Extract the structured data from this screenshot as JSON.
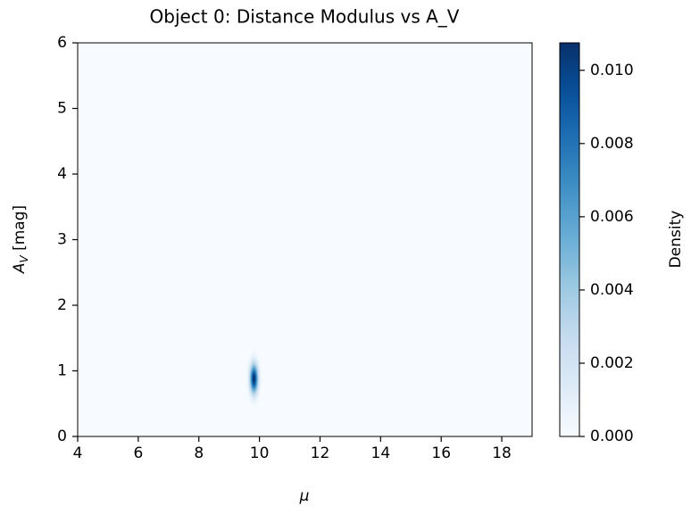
{
  "chart_data": {
    "type": "density",
    "title": "Object 0: Distance Modulus vs A_V",
    "xlabel": "μ",
    "ylabel": "A_V [mag]",
    "xlim": [
      4,
      19
    ],
    "xticks": [
      4,
      6,
      8,
      10,
      12,
      14,
      16,
      18
    ],
    "ylim": [
      0,
      6
    ],
    "yticks": [
      0,
      1,
      2,
      3,
      4,
      5,
      6
    ],
    "peak": {
      "x": 9.82,
      "y": 0.88,
      "sx": 0.09,
      "sy": 0.15,
      "density": 0.0107
    },
    "colormap": [
      "#f7fbff",
      "#deebf7",
      "#c6dbef",
      "#9ecae1",
      "#6baed6",
      "#4292c6",
      "#2171b5",
      "#08519c",
      "#08306b"
    ],
    "colorbar": {
      "label": "Density",
      "lim": [
        0,
        0.01075
      ],
      "ticks": [
        {
          "value": 0,
          "label": "0.000"
        },
        {
          "value": 0.002,
          "label": "0.002"
        },
        {
          "value": 0.004,
          "label": "0.004"
        },
        {
          "value": 0.006,
          "label": "0.006"
        },
        {
          "value": 0.008,
          "label": "0.008"
        },
        {
          "value": 0.01,
          "label": "0.010"
        }
      ]
    }
  }
}
